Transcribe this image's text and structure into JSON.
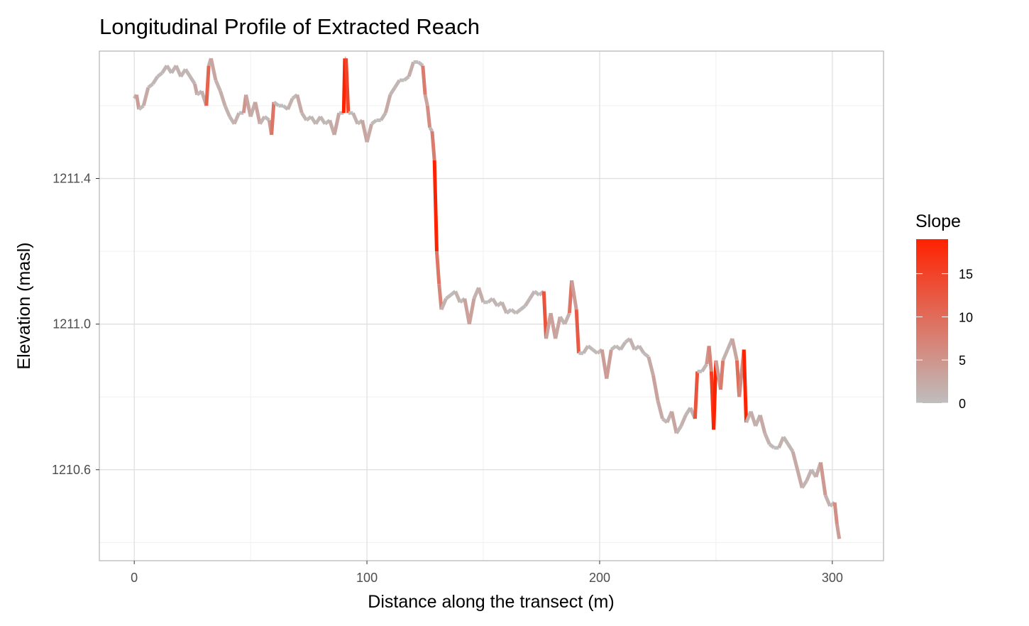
{
  "chart_data": {
    "type": "line",
    "title": "Longitudinal Profile of Extracted Reach",
    "xlabel": "Distance along the transect (m)",
    "ylabel": "Elevation (masl)",
    "xlim": [
      -15,
      322
    ],
    "ylim": [
      1210.35,
      1211.75
    ],
    "x_ticks": [
      0,
      100,
      200,
      300
    ],
    "x_tick_labels": [
      "0",
      "100",
      "200",
      "300"
    ],
    "x_minor_ticks": [
      50,
      150,
      250
    ],
    "y_ticks": [
      1210.6,
      1211.0,
      1211.4
    ],
    "y_tick_labels": [
      "1210.6",
      "1211.0",
      "1211.4"
    ],
    "y_minor_ticks": [
      1210.4,
      1210.8,
      1211.2,
      1211.6
    ],
    "grid": true,
    "legend": {
      "title": "Slope",
      "placement": "right",
      "type": "colorbar",
      "min": 0,
      "max": 19,
      "ticks": [
        0,
        5,
        10,
        15
      ],
      "tick_labels": [
        "0",
        "5",
        "10",
        "15"
      ],
      "color_low": "#bebebe",
      "color_high": "#ff2200"
    },
    "series": [
      {
        "color_by": "slope",
        "points": [
          [
            0,
            1211.62
          ],
          [
            1,
            1211.63
          ],
          [
            2,
            1211.59
          ],
          [
            4,
            1211.6
          ],
          [
            6,
            1211.65
          ],
          [
            8,
            1211.66
          ],
          [
            10,
            1211.68
          ],
          [
            12,
            1211.69
          ],
          [
            14,
            1211.71
          ],
          [
            16,
            1211.69
          ],
          [
            18,
            1211.71
          ],
          [
            20,
            1211.68
          ],
          [
            22,
            1211.7
          ],
          [
            24,
            1211.68
          ],
          [
            26,
            1211.66
          ],
          [
            27,
            1211.63
          ],
          [
            29,
            1211.64
          ],
          [
            31,
            1211.6
          ],
          [
            32,
            1211.71
          ],
          [
            33,
            1211.73
          ],
          [
            35,
            1211.67
          ],
          [
            37,
            1211.64
          ],
          [
            39,
            1211.6
          ],
          [
            41,
            1211.57
          ],
          [
            43,
            1211.55
          ],
          [
            45,
            1211.58
          ],
          [
            47,
            1211.58
          ],
          [
            48,
            1211.63
          ],
          [
            50,
            1211.57
          ],
          [
            52,
            1211.61
          ],
          [
            54,
            1211.55
          ],
          [
            56,
            1211.57
          ],
          [
            58,
            1211.56
          ],
          [
            59,
            1211.52
          ],
          [
            60,
            1211.61
          ],
          [
            62,
            1211.6
          ],
          [
            64,
            1211.6
          ],
          [
            66,
            1211.59
          ],
          [
            68,
            1211.62
          ],
          [
            70,
            1211.63
          ],
          [
            72,
            1211.58
          ],
          [
            74,
            1211.56
          ],
          [
            76,
            1211.57
          ],
          [
            78,
            1211.55
          ],
          [
            80,
            1211.57
          ],
          [
            82,
            1211.55
          ],
          [
            84,
            1211.56
          ],
          [
            86,
            1211.52
          ],
          [
            88,
            1211.58
          ],
          [
            90,
            1211.58
          ],
          [
            90.5,
            1211.73
          ],
          [
            91,
            1211.73
          ],
          [
            92,
            1211.58
          ],
          [
            94,
            1211.58
          ],
          [
            96,
            1211.55
          ],
          [
            98,
            1211.56
          ],
          [
            100,
            1211.5
          ],
          [
            102,
            1211.55
          ],
          [
            104,
            1211.56
          ],
          [
            106,
            1211.56
          ],
          [
            108,
            1211.58
          ],
          [
            110,
            1211.63
          ],
          [
            112,
            1211.65
          ],
          [
            114,
            1211.67
          ],
          [
            116,
            1211.67
          ],
          [
            118,
            1211.68
          ],
          [
            120,
            1211.72
          ],
          [
            122,
            1211.72
          ],
          [
            124,
            1211.71
          ],
          [
            125,
            1211.63
          ],
          [
            126,
            1211.6
          ],
          [
            127,
            1211.54
          ],
          [
            128,
            1211.53
          ],
          [
            129,
            1211.45
          ],
          [
            130,
            1211.2
          ],
          [
            131,
            1211.11
          ],
          [
            132,
            1211.04
          ],
          [
            134,
            1211.07
          ],
          [
            136,
            1211.08
          ],
          [
            138,
            1211.09
          ],
          [
            140,
            1211.06
          ],
          [
            142,
            1211.07
          ],
          [
            144,
            1211.0
          ],
          [
            146,
            1211.07
          ],
          [
            148,
            1211.1
          ],
          [
            150,
            1211.06
          ],
          [
            152,
            1211.06
          ],
          [
            154,
            1211.07
          ],
          [
            156,
            1211.05
          ],
          [
            158,
            1211.06
          ],
          [
            160,
            1211.03
          ],
          [
            162,
            1211.04
          ],
          [
            164,
            1211.03
          ],
          [
            166,
            1211.04
          ],
          [
            168,
            1211.05
          ],
          [
            170,
            1211.07
          ],
          [
            172,
            1211.09
          ],
          [
            174,
            1211.08
          ],
          [
            176,
            1211.09
          ],
          [
            177,
            1210.96
          ],
          [
            179,
            1211.03
          ],
          [
            181,
            1210.96
          ],
          [
            183,
            1211.02
          ],
          [
            185,
            1211.0
          ],
          [
            187,
            1211.03
          ],
          [
            188,
            1211.12
          ],
          [
            190,
            1211.04
          ],
          [
            191,
            1210.92
          ],
          [
            193,
            1210.92
          ],
          [
            195,
            1210.94
          ],
          [
            197,
            1210.93
          ],
          [
            199,
            1210.92
          ],
          [
            201,
            1210.93
          ],
          [
            203,
            1210.85
          ],
          [
            205,
            1210.93
          ],
          [
            207,
            1210.94
          ],
          [
            209,
            1210.93
          ],
          [
            211,
            1210.95
          ],
          [
            213,
            1210.96
          ],
          [
            215,
            1210.93
          ],
          [
            217,
            1210.94
          ],
          [
            219,
            1210.92
          ],
          [
            221,
            1210.91
          ],
          [
            223,
            1210.86
          ],
          [
            225,
            1210.79
          ],
          [
            227,
            1210.74
          ],
          [
            229,
            1210.73
          ],
          [
            231,
            1210.76
          ],
          [
            233,
            1210.7
          ],
          [
            235,
            1210.72
          ],
          [
            237,
            1210.75
          ],
          [
            239,
            1210.77
          ],
          [
            241,
            1210.74
          ],
          [
            242,
            1210.87
          ],
          [
            244,
            1210.87
          ],
          [
            246,
            1210.89
          ],
          [
            247,
            1210.94
          ],
          [
            248,
            1210.87
          ],
          [
            249,
            1210.71
          ],
          [
            250,
            1210.9
          ],
          [
            252,
            1210.82
          ],
          [
            253,
            1210.9
          ],
          [
            255,
            1210.93
          ],
          [
            257,
            1210.96
          ],
          [
            259,
            1210.9
          ],
          [
            260,
            1210.8
          ],
          [
            262,
            1210.93
          ],
          [
            263,
            1210.73
          ],
          [
            265,
            1210.76
          ],
          [
            267,
            1210.72
          ],
          [
            269,
            1210.75
          ],
          [
            271,
            1210.7
          ],
          [
            273,
            1210.67
          ],
          [
            275,
            1210.66
          ],
          [
            277,
            1210.66
          ],
          [
            279,
            1210.69
          ],
          [
            281,
            1210.67
          ],
          [
            283,
            1210.65
          ],
          [
            285,
            1210.6
          ],
          [
            287,
            1210.55
          ],
          [
            289,
            1210.57
          ],
          [
            291,
            1210.6
          ],
          [
            293,
            1210.58
          ],
          [
            295,
            1210.62
          ],
          [
            297,
            1210.53
          ],
          [
            299,
            1210.5
          ],
          [
            301,
            1210.51
          ],
          [
            302,
            1210.45
          ],
          [
            303,
            1210.41
          ]
        ]
      }
    ]
  }
}
